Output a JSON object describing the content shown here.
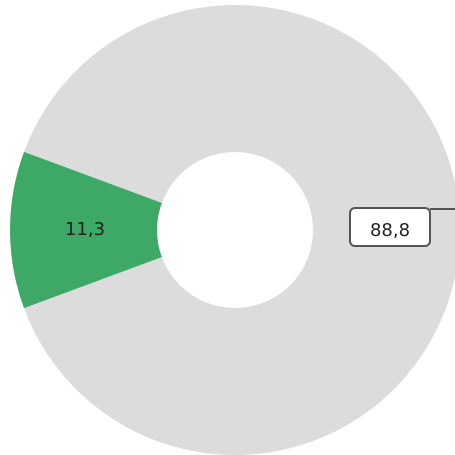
{
  "chart_data": {
    "type": "pie",
    "donut": true,
    "categories": [
      "",
      ""
    ],
    "values": [
      88.8,
      11.3
    ],
    "value_labels": [
      "88,8",
      "11,3"
    ],
    "colors": [
      "#dcdcdc",
      "#3ea866"
    ],
    "title": "",
    "legend": "none"
  }
}
